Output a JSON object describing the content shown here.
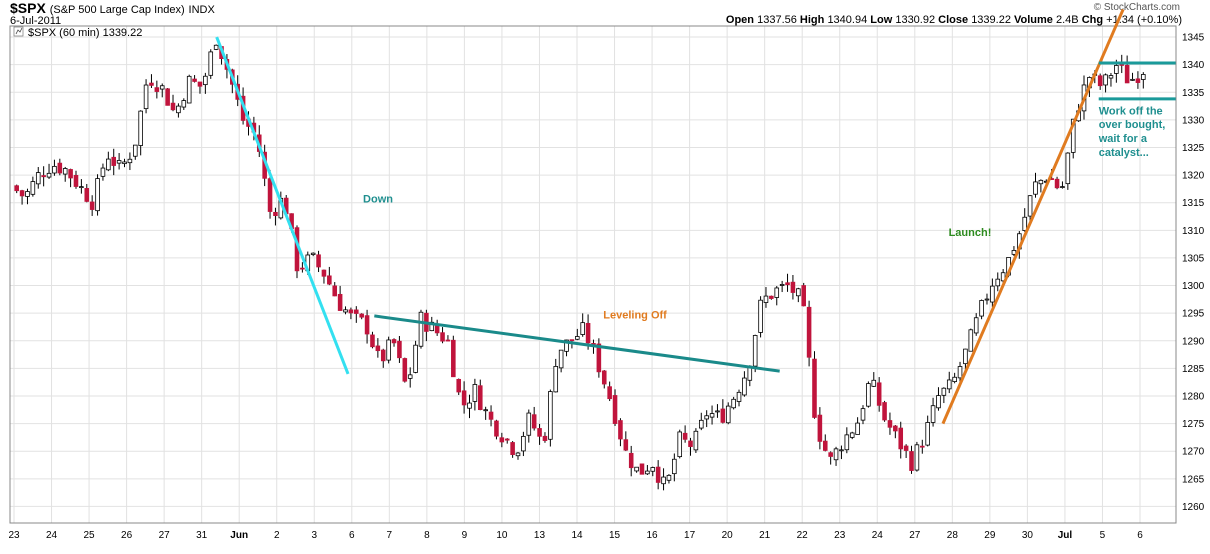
{
  "header": {
    "symbol": "$SPX",
    "name": "(S&P 500 Large Cap Index)",
    "exchange": "INDX",
    "date": "6-Jul-2011",
    "brand": "© StockCharts.com",
    "open_label": "Open",
    "open": "1337.56",
    "high_label": "High",
    "high": "1340.94",
    "low_label": "Low",
    "low": "1330.92",
    "close_label": "Close",
    "close": "1339.22",
    "volume_label": "Volume",
    "volume": "2.4B",
    "chg_label": "Chg",
    "chg": "+1.34 (+0.10%)"
  },
  "chart_data": {
    "type": "candlestick",
    "legend": "$SPX (60 min) 1339.22",
    "ylim": [
      1257,
      1347
    ],
    "y_ticks": [
      1260,
      1265,
      1270,
      1275,
      1280,
      1285,
      1290,
      1295,
      1300,
      1305,
      1310,
      1315,
      1320,
      1325,
      1330,
      1335,
      1340,
      1345
    ],
    "x_labels": [
      "23",
      "24",
      "25",
      "26",
      "27",
      "31",
      "Jun",
      "2",
      "3",
      "6",
      "7",
      "8",
      "9",
      "10",
      "13",
      "14",
      "15",
      "16",
      "17",
      "20",
      "21",
      "22",
      "23",
      "24",
      "27",
      "28",
      "29",
      "30",
      "Jul",
      "5",
      "6"
    ],
    "up_color": "#ffffff",
    "down_color": "#c0143c",
    "closes": [
      1318,
      1316,
      1320,
      1322,
      1321,
      1318,
      1315,
      1324,
      1321,
      1325,
      1338,
      1336,
      1331,
      1337,
      1336,
      1345,
      1338,
      1330,
      1327,
      1313,
      1316,
      1303,
      1305,
      1302,
      1297,
      1294,
      1293,
      1286,
      1290,
      1281,
      1294,
      1292,
      1290,
      1278,
      1281,
      1276,
      1273,
      1270,
      1276,
      1271,
      1288,
      1290,
      1292,
      1286,
      1279,
      1270,
      1266,
      1268,
      1263,
      1272,
      1271,
      1277,
      1276,
      1280,
      1285,
      1297,
      1299,
      1300,
      1297,
      1275,
      1268,
      1272,
      1275,
      1283,
      1276,
      1272,
      1268,
      1273,
      1280,
      1282,
      1288,
      1295,
      1301,
      1304,
      1310,
      1318,
      1320,
      1317,
      1331,
      1338,
      1336,
      1340,
      1337,
      1339.22
    ],
    "annotations": [
      {
        "text": "Down",
        "color": "#1f8f8f",
        "x": 1300,
        "y": 1315
      },
      {
        "text": "Leveling Off",
        "color": "#e07b20",
        "x": 1293.5,
        "y": 1294
      },
      {
        "text": "Launch!",
        "color": "#2e8b20",
        "x": 1311,
        "y": 1309
      },
      {
        "text": "Work off the",
        "color": "#1f8f8f",
        "x": 1333,
        "y": 1331
      },
      {
        "text": "over bought,",
        "color": "#1f8f8f",
        "x": 1333,
        "y": 1328.5
      },
      {
        "text": "wait for a",
        "color": "#1f8f8f",
        "x": 1333,
        "y": 1326
      },
      {
        "text": "catalyst...",
        "color": "#1f8f8f",
        "x": 1333,
        "y": 1323.5
      }
    ],
    "trendlines": [
      {
        "name": "down",
        "color": "#33e0f0",
        "from": [
          5.4,
          1345
        ],
        "to": [
          8.9,
          1284
        ]
      },
      {
        "name": "leveling",
        "color": "#1a8a8a",
        "from": [
          9.6,
          1294.5
        ],
        "to": [
          20.4,
          1284.5
        ]
      },
      {
        "name": "launch",
        "color": "#e07b20",
        "from": [
          24.75,
          1275
        ],
        "to": [
          29.55,
          1350
        ]
      },
      {
        "name": "upper-band",
        "color": "#1a9a9a",
        "from": [
          28.9,
          1340.3
        ],
        "to": [
          30.95,
          1340.3
        ]
      },
      {
        "name": "lower-band",
        "color": "#1a9a9a",
        "from": [
          28.9,
          1333.8
        ],
        "to": [
          30.95,
          1333.8
        ]
      }
    ]
  }
}
